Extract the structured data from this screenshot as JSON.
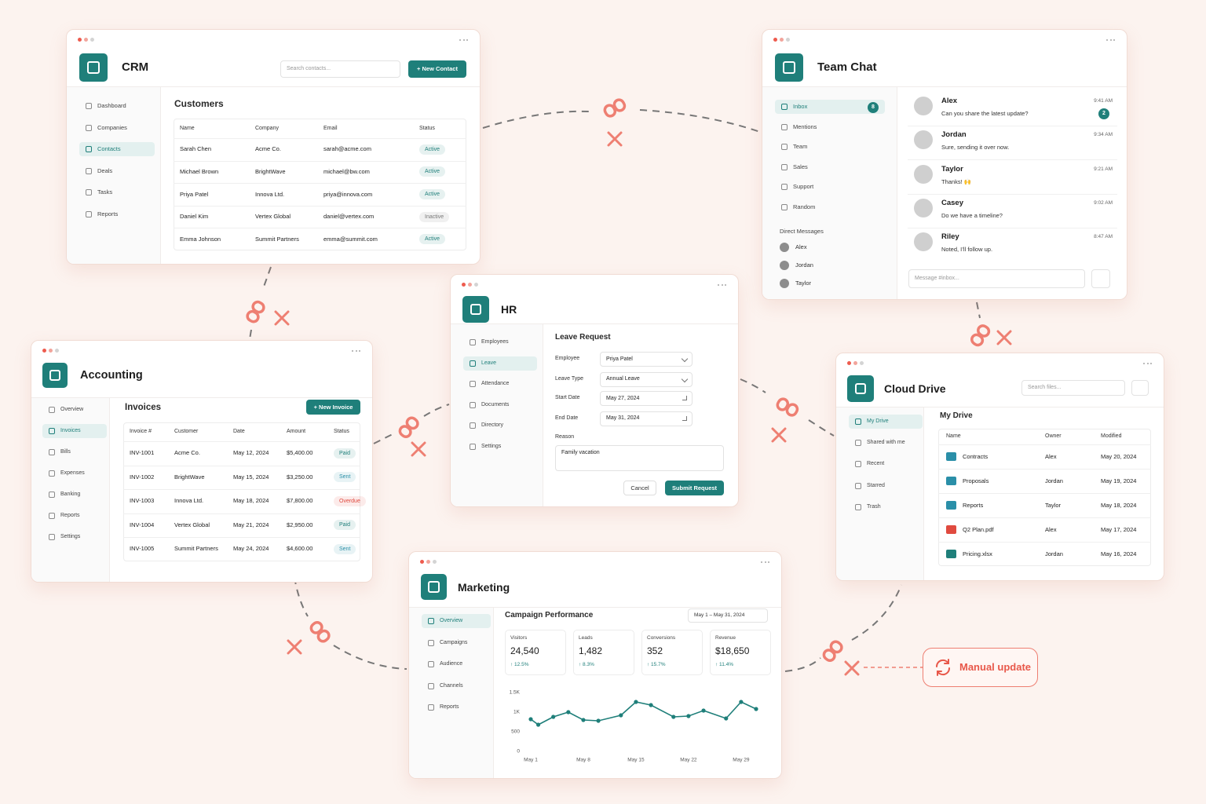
{
  "crm": {
    "title": "CRM",
    "search_placeholder": "Search contacts...",
    "new_button": "+ New Contact",
    "nav": [
      "Dashboard",
      "Companies",
      "Contacts",
      "Deals",
      "Tasks",
      "Reports"
    ],
    "active_nav": 2,
    "section_title": "Customers",
    "table": {
      "columns": [
        "Name",
        "Company",
        "Email",
        "Status"
      ],
      "rows": [
        [
          "Sarah Chen",
          "Acme Co.",
          "sarah@acme.com",
          "Active"
        ],
        [
          "Michael Brown",
          "BrightWave",
          "michael@bw.com",
          "Active"
        ],
        [
          "Priya Patel",
          "Innova Ltd.",
          "priya@innova.com",
          "Active"
        ],
        [
          "Daniel Kim",
          "Vertex Global",
          "daniel@vertex.com",
          "Inactive"
        ],
        [
          "Emma Johnson",
          "Summit Partners",
          "emma@summit.com",
          "Active"
        ]
      ],
      "status_colors": [
        "#1f7f7a",
        "#1f7f7a",
        "#1f7f7a",
        "#777777",
        "#1f7f7a"
      ]
    }
  },
  "team_chat": {
    "title": "Team Chat",
    "channels": [
      "Inbox",
      "Mentions",
      "Team",
      "Sales",
      "Support",
      "Random"
    ],
    "active_channel": 0,
    "inbox_badge": "8",
    "dm_heading": "Direct Messages",
    "dms": [
      "Alex",
      "Jordan",
      "Taylor"
    ],
    "messages": [
      {
        "name": "Alex",
        "text": "Can you share the latest update?",
        "time": "9:41 AM",
        "badge": "2"
      },
      {
        "name": "Jordan",
        "text": "Sure, sending it over now.",
        "time": "9:34 AM"
      },
      {
        "name": "Taylor",
        "text": "Thanks! 🙌",
        "time": "9:21 AM"
      },
      {
        "name": "Casey",
        "text": "Do we have a timeline?",
        "time": "9:02 AM"
      },
      {
        "name": "Riley",
        "text": "Noted, I’ll follow up.",
        "time": "8:47 AM"
      }
    ],
    "input_placeholder": "Message #inbox..."
  },
  "hr": {
    "title": "HR",
    "nav": [
      "Employees",
      "Leave",
      "Attendance",
      "Documents",
      "Directory",
      "Settings"
    ],
    "active_nav": 1,
    "form_title": "Leave Request",
    "select_fields": [
      {
        "label": "Employee",
        "value": "Priya Patel"
      },
      {
        "label": "Leave Type",
        "value": "Annual Leave"
      }
    ],
    "date_fields": [
      {
        "label": "Start Date",
        "value": "May 27, 2024"
      },
      {
        "label": "End Date",
        "value": "May 31, 2024"
      }
    ],
    "reason_label": "Reason",
    "reason_value": "Family vacation",
    "cancel": "Cancel",
    "submit": "Submit Request"
  },
  "accounting": {
    "title": "Accounting",
    "nav": [
      "Overview",
      "Invoices",
      "Bills",
      "Expenses",
      "Banking",
      "Reports",
      "Settings"
    ],
    "active_nav": 1,
    "section_title": "Invoices",
    "new_button": "+ New Invoice",
    "table": {
      "columns": [
        "Invoice #",
        "Customer",
        "Date",
        "Amount",
        "Status"
      ],
      "rows": [
        [
          "INV-1001",
          "Acme Co.",
          "May 12, 2024",
          "$5,400.00",
          "Paid"
        ],
        [
          "INV-1002",
          "BrightWave",
          "May 15, 2024",
          "$3,250.00",
          "Sent"
        ],
        [
          "INV-1003",
          "Innova Ltd.",
          "May 18, 2024",
          "$7,800.00",
          "Overdue"
        ],
        [
          "INV-1004",
          "Vertex Global",
          "May 21, 2024",
          "$2,950.00",
          "Paid"
        ],
        [
          "INV-1005",
          "Summit Partners",
          "May 24, 2024",
          "$4,600.00",
          "Sent"
        ]
      ],
      "status_colors": [
        "#1f7f7a",
        "#2a8fa8",
        "#e04a3f",
        "#1f7f7a",
        "#2a8fa8"
      ]
    }
  },
  "cloud_drive": {
    "title": "Cloud Drive",
    "search_placeholder": "Search files...",
    "nav": [
      "My Drive",
      "Shared with me",
      "Recent",
      "Starred",
      "Trash"
    ],
    "active_nav": 0,
    "section_title": "My Drive",
    "table": {
      "columns": [
        "Name",
        "Owner",
        "Modified"
      ],
      "rows": [
        [
          "Contracts",
          "Alex",
          "May 20, 2024"
        ],
        [
          "Proposals",
          "Jordan",
          "May 19, 2024"
        ],
        [
          "Reports",
          "Taylor",
          "May 18, 2024"
        ],
        [
          "Q2 Plan.pdf",
          "Alex",
          "May 17, 2024"
        ],
        [
          "Pricing.xlsx",
          "Jordan",
          "May 16, 2024"
        ]
      ],
      "icon_colors": [
        "#2a8fa8",
        "#2a8fa8",
        "#2a8fa8",
        "#e04a3f",
        "#1f7f7a"
      ]
    }
  },
  "marketing": {
    "title": "Marketing",
    "nav": [
      "Overview",
      "Campaigns",
      "Audience",
      "Channels",
      "Reports"
    ],
    "active_nav": 0,
    "section_title": "Campaign Performance",
    "date_range": "May 1 – May 31, 2024",
    "kpis": [
      {
        "label": "Visitors",
        "value": "24,540",
        "change": "↑ 12.5%"
      },
      {
        "label": "Leads",
        "value": "1,482",
        "change": "↑ 8.3%"
      },
      {
        "label": "Conversions",
        "value": "352",
        "change": "↑ 15.7%"
      },
      {
        "label": "Revenue",
        "value": "$18,650",
        "change": "↑ 11.4%"
      }
    ],
    "chart": {
      "type": "line",
      "x": [
        1,
        2,
        4,
        6,
        8,
        10,
        13,
        15,
        17,
        20,
        22,
        24,
        27,
        29,
        31
      ],
      "values": [
        820,
        680,
        880,
        1000,
        800,
        780,
        920,
        1260,
        1180,
        880,
        900,
        1040,
        840,
        1260,
        1080
      ],
      "color": "#1f7f7a",
      "xlim": [
        1,
        31
      ],
      "ylim": [
        0,
        1500
      ],
      "yticks": [
        0,
        500,
        {
          "value": 1000,
          "label": "1K"
        },
        {
          "value": 1500,
          "label": "1.5K"
        }
      ],
      "xticks": [
        {
          "value": 1,
          "label": "May 1"
        },
        {
          "value": 8,
          "label": "May 8"
        },
        {
          "value": 15,
          "label": "May 15"
        },
        {
          "value": 22,
          "label": "May 22"
        },
        {
          "value": 29,
          "label": "May 29"
        }
      ]
    }
  },
  "manual_update": "Manual update"
}
